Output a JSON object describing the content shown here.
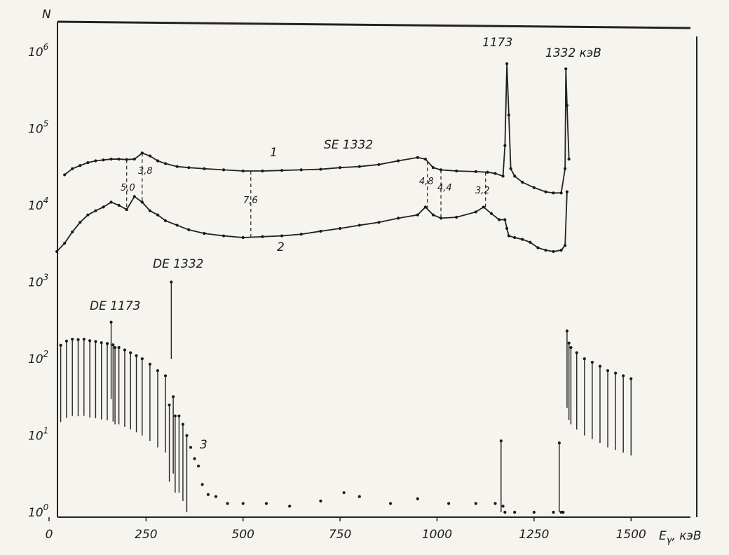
{
  "chart_data": {
    "type": "scatter",
    "y_scale": "log",
    "xlabel": "E",
    "xlabel_sub": "γ",
    "xlabel_unit": ", кэВ",
    "ylabel": "N",
    "xlim": [
      0,
      1600
    ],
    "ylim_log10": [
      0,
      6
    ],
    "x_ticks": [
      {
        "value": 0,
        "label": "0"
      },
      {
        "value": 250,
        "label": "250"
      },
      {
        "value": 500,
        "label": "500"
      },
      {
        "value": 750,
        "label": "750"
      },
      {
        "value": 1000,
        "label": "1000"
      },
      {
        "value": 1250,
        "label": "1250"
      },
      {
        "value": 1500,
        "label": "1500"
      }
    ],
    "y_ticks": [
      {
        "exp": 0,
        "base": "10",
        "sup": "0"
      },
      {
        "exp": 1,
        "base": "10",
        "sup": "1"
      },
      {
        "exp": 2,
        "base": "10",
        "sup": "2"
      },
      {
        "exp": 3,
        "base": "10",
        "sup": "3"
      },
      {
        "exp": 4,
        "base": "10",
        "sup": "4"
      },
      {
        "exp": 5,
        "base": "10",
        "sup": "5"
      },
      {
        "exp": 6,
        "base": "10",
        "sup": "6"
      }
    ],
    "series": [
      {
        "name": "1",
        "x": [
          40,
          60,
          80,
          100,
          120,
          140,
          160,
          180,
          200,
          220,
          240,
          260,
          280,
          300,
          330,
          360,
          400,
          450,
          500,
          550,
          600,
          650,
          700,
          750,
          800,
          850,
          900,
          950,
          970,
          990,
          1010,
          1050,
          1100,
          1130,
          1150,
          1170,
          1175,
          1180,
          1185,
          1190,
          1200,
          1220,
          1250,
          1280,
          1300,
          1320,
          1330,
          1332,
          1335,
          1340
        ],
        "y": [
          25000,
          30000,
          33000,
          36000,
          38000,
          39000,
          40000,
          40000,
          39500,
          40000,
          48000,
          44000,
          38000,
          35000,
          32000,
          31000,
          30000,
          29000,
          28000,
          28000,
          28500,
          29000,
          29500,
          31000,
          32000,
          34000,
          38000,
          42000,
          40000,
          31000,
          29000,
          28000,
          27500,
          27000,
          26000,
          24000,
          60000,
          700000,
          150000,
          30000,
          24000,
          20000,
          17000,
          15000,
          14500,
          14500,
          30000,
          600000,
          200000,
          40000
        ]
      },
      {
        "name": "2",
        "x": [
          20,
          40,
          60,
          80,
          100,
          120,
          140,
          160,
          180,
          200,
          220,
          240,
          260,
          280,
          300,
          330,
          360,
          400,
          450,
          500,
          550,
          600,
          650,
          700,
          750,
          800,
          850,
          900,
          950,
          970,
          990,
          1010,
          1050,
          1100,
          1120,
          1140,
          1160,
          1175,
          1180,
          1185,
          1200,
          1220,
          1240,
          1260,
          1280,
          1300,
          1320,
          1330,
          1335
        ],
        "y": [
          2500,
          3200,
          4500,
          6000,
          7500,
          8500,
          9500,
          11000,
          10000,
          8800,
          13000,
          11000,
          8500,
          7500,
          6300,
          5500,
          4800,
          4300,
          4000,
          3800,
          3900,
          4000,
          4200,
          4600,
          5000,
          5500,
          6000,
          6800,
          7500,
          9500,
          7500,
          6800,
          7000,
          8200,
          9500,
          7800,
          6500,
          6500,
          5000,
          4000,
          3800,
          3600,
          3300,
          2800,
          2600,
          2500,
          2600,
          3000,
          15000
        ]
      },
      {
        "name": "3",
        "x": [
          30,
          45,
          60,
          75,
          90,
          105,
          120,
          135,
          150,
          160,
          165,
          170,
          180,
          195,
          210,
          225,
          240,
          260,
          280,
          300,
          310,
          315,
          320,
          325,
          335,
          345,
          355,
          365,
          375,
          385,
          395,
          410,
          430,
          460,
          500,
          560,
          620,
          700,
          760,
          800,
          880,
          950,
          1030,
          1100,
          1150,
          1165,
          1170,
          1175,
          1200,
          1250,
          1300,
          1315,
          1320,
          1325,
          1335,
          1340,
          1345,
          1360,
          1380,
          1400,
          1420,
          1440,
          1460,
          1480,
          1500
        ],
        "y": [
          150,
          170,
          180,
          178,
          180,
          172,
          168,
          162,
          158,
          300,
          152,
          140,
          140,
          130,
          120,
          110,
          100,
          85,
          70,
          60,
          25,
          1000,
          32,
          18,
          18,
          14,
          10,
          7,
          5,
          4,
          2.3,
          1.7,
          1.6,
          1.3,
          1.3,
          1.3,
          1.2,
          1.4,
          1.8,
          1.6,
          1.3,
          1.5,
          1.3,
          1.3,
          1.3,
          8.5,
          1.2,
          1,
          1,
          1,
          1,
          8,
          1,
          1,
          230,
          160,
          140,
          120,
          100,
          90,
          80,
          70,
          65,
          60,
          55
        ]
      }
    ],
    "annotations": {
      "curve1_label": "1",
      "curve2_label": "2",
      "curve3_label": "3",
      "se1332": "SE 1332",
      "de1332": "DE 1332",
      "de1173": "DE 1173",
      "peak1173": "1173",
      "peak1332": "1332 кэВ",
      "ratios": [
        "5,0",
        "3,8",
        "7,6",
        "4,8",
        "4,4",
        "3,2"
      ],
      "ratio_x": [
        200,
        240,
        520,
        975,
        1010,
        1125
      ]
    }
  }
}
